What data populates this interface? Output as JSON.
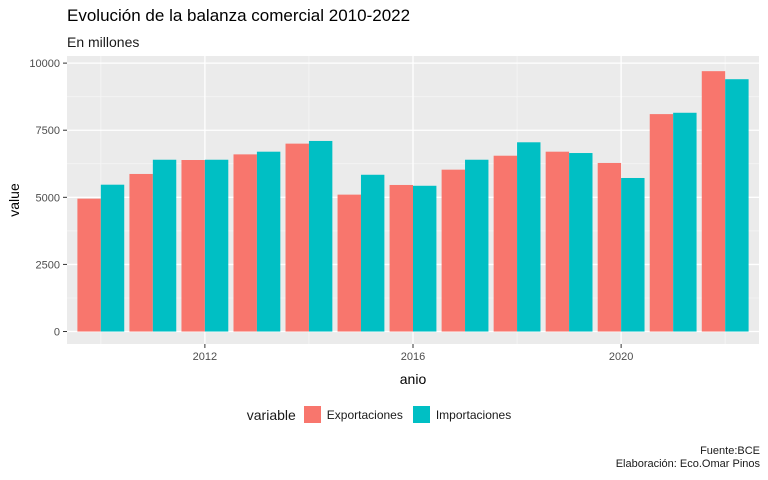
{
  "chart_data": {
    "type": "bar",
    "title": "Evolución de la balanza comercial 2010-2022",
    "subtitle": "En millones",
    "xlabel": "anio",
    "ylabel": "value",
    "x": [
      2010,
      2011,
      2012,
      2013,
      2014,
      2015,
      2016,
      2017,
      2018,
      2019,
      2020,
      2021,
      2022
    ],
    "xticks": [
      "2012",
      "2016",
      "2020"
    ],
    "yticks": [
      "0",
      "2500",
      "5000",
      "7500",
      "10000"
    ],
    "ylim": [
      0,
      10000
    ],
    "grid": true,
    "legend_position": "bottom",
    "legend_title": "variable",
    "series": [
      {
        "name": "Exportaciones",
        "color": "#F8766D",
        "values": [
          4950,
          5870,
          6390,
          6600,
          7000,
          5100,
          5460,
          6030,
          6550,
          6700,
          6280,
          8100,
          9700
        ]
      },
      {
        "name": "Importaciones",
        "color": "#00BFC4",
        "values": [
          5470,
          6400,
          6400,
          6700,
          7100,
          5840,
          5430,
          6400,
          7050,
          6650,
          5720,
          8150,
          9400
        ]
      }
    ],
    "caption": [
      "Fuente:BCE",
      "Elaboración: Eco.Omar Pinos"
    ]
  }
}
